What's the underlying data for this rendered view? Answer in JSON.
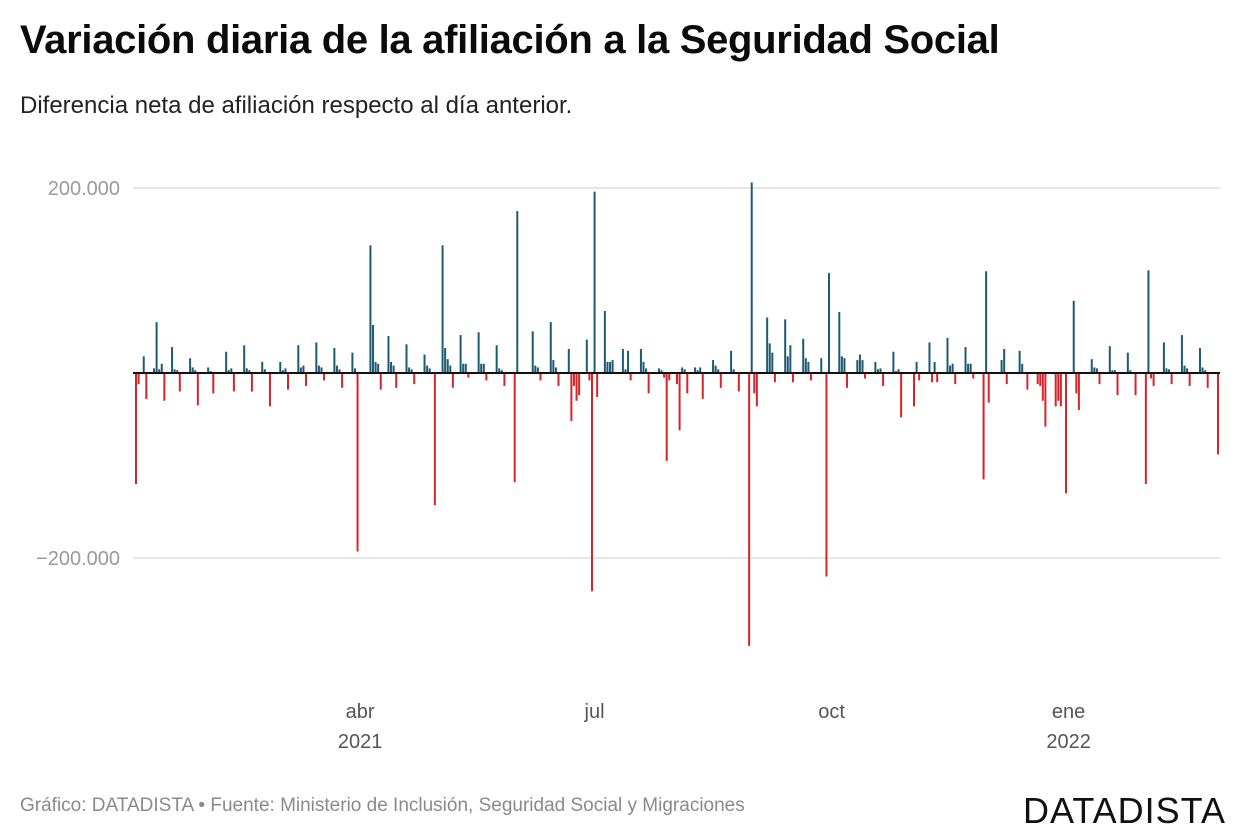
{
  "title": "Variación diaria de la afiliación a la Seguridad Social",
  "subtitle": "Diferencia neta de afiliación respecto al día anterior.",
  "footer": "Gráfico: DATADISTA • Fuente: Ministerio de Inclusión, Seguridad Social y Migraciones",
  "logo": "DATADISTA",
  "chart_data": {
    "type": "bar",
    "title": "Variación diaria de la afiliación a la Seguridad Social",
    "subtitle": "Diferencia neta de afiliación respecto al día anterior.",
    "xlabel": "",
    "ylabel": "",
    "ylim": [
      -300000,
      205000
    ],
    "grid": true,
    "y_ticks": [
      {
        "value": 200000,
        "label": "200.000"
      },
      {
        "value": -200000,
        "label": "−200.000"
      }
    ],
    "x_ticks": [
      {
        "date": "2021-04-01",
        "label": "abr",
        "year_label": "2021"
      },
      {
        "date": "2021-07-01",
        "label": "jul",
        "year_label": ""
      },
      {
        "date": "2021-10-01",
        "label": "oct",
        "year_label": ""
      },
      {
        "date": "2022-01-01",
        "label": "ene",
        "year_label": "2022"
      }
    ],
    "colors": {
      "positive": "#1f5a73",
      "negative": "#d6242b",
      "grid": "#dddddd",
      "zero": "#111111"
    },
    "series": [
      {
        "values_by_date": [
          [
            "2021-01-04",
            -120000
          ],
          [
            "2021-01-05",
            -12000
          ],
          [
            "2021-01-07",
            18000
          ],
          [
            "2021-01-08",
            -28000
          ],
          [
            "2021-01-11",
            5000
          ],
          [
            "2021-01-12",
            55000
          ],
          [
            "2021-01-13",
            4000
          ],
          [
            "2021-01-14",
            10000
          ],
          [
            "2021-01-15",
            -30000
          ],
          [
            "2021-01-18",
            28000
          ],
          [
            "2021-01-19",
            4000
          ],
          [
            "2021-01-20",
            3000
          ],
          [
            "2021-01-21",
            -20000
          ],
          [
            "2021-01-25",
            16000
          ],
          [
            "2021-01-26",
            6000
          ],
          [
            "2021-01-27",
            3000
          ],
          [
            "2021-01-28",
            -35000
          ],
          [
            "2021-02-01",
            6000
          ],
          [
            "2021-02-02",
            2000
          ],
          [
            "2021-02-03",
            -22000
          ],
          [
            "2021-02-08",
            23000
          ],
          [
            "2021-02-09",
            3000
          ],
          [
            "2021-02-10",
            5000
          ],
          [
            "2021-02-11",
            -20000
          ],
          [
            "2021-02-15",
            30000
          ],
          [
            "2021-02-16",
            5000
          ],
          [
            "2021-02-17",
            3000
          ],
          [
            "2021-02-18",
            -20000
          ],
          [
            "2021-02-22",
            12000
          ],
          [
            "2021-02-23",
            4000
          ],
          [
            "2021-02-25",
            -36000
          ],
          [
            "2021-03-01",
            12000
          ],
          [
            "2021-03-02",
            3000
          ],
          [
            "2021-03-03",
            5000
          ],
          [
            "2021-03-04",
            -18000
          ],
          [
            "2021-03-08",
            30000
          ],
          [
            "2021-03-09",
            6000
          ],
          [
            "2021-03-10",
            8000
          ],
          [
            "2021-03-11",
            -14000
          ],
          [
            "2021-03-15",
            33000
          ],
          [
            "2021-03-16",
            8000
          ],
          [
            "2021-03-17",
            6000
          ],
          [
            "2021-03-18",
            -8000
          ],
          [
            "2021-03-22",
            27000
          ],
          [
            "2021-03-23",
            8000
          ],
          [
            "2021-03-24",
            4000
          ],
          [
            "2021-03-25",
            -16000
          ],
          [
            "2021-03-29",
            22000
          ],
          [
            "2021-03-30",
            5000
          ],
          [
            "2021-03-31",
            -193000
          ],
          [
            "2021-04-05",
            138000
          ],
          [
            "2021-04-06",
            52000
          ],
          [
            "2021-04-07",
            12000
          ],
          [
            "2021-04-08",
            10000
          ],
          [
            "2021-04-09",
            -18000
          ],
          [
            "2021-04-12",
            40000
          ],
          [
            "2021-04-13",
            12000
          ],
          [
            "2021-04-14",
            8000
          ],
          [
            "2021-04-15",
            -16000
          ],
          [
            "2021-04-19",
            31000
          ],
          [
            "2021-04-20",
            6000
          ],
          [
            "2021-04-21",
            4000
          ],
          [
            "2021-04-22",
            -12000
          ],
          [
            "2021-04-26",
            20000
          ],
          [
            "2021-04-27",
            8000
          ],
          [
            "2021-04-28",
            5000
          ],
          [
            "2021-04-30",
            -143000
          ],
          [
            "2021-05-03",
            138000
          ],
          [
            "2021-05-04",
            27000
          ],
          [
            "2021-05-05",
            15000
          ],
          [
            "2021-05-06",
            8000
          ],
          [
            "2021-05-07",
            -16000
          ],
          [
            "2021-05-10",
            41000
          ],
          [
            "2021-05-11",
            10000
          ],
          [
            "2021-05-12",
            10000
          ],
          [
            "2021-05-13",
            -5000
          ],
          [
            "2021-05-17",
            44000
          ],
          [
            "2021-05-18",
            10000
          ],
          [
            "2021-05-19",
            10000
          ],
          [
            "2021-05-20",
            -8000
          ],
          [
            "2021-05-24",
            30000
          ],
          [
            "2021-05-25",
            5000
          ],
          [
            "2021-05-26",
            3000
          ],
          [
            "2021-05-27",
            -14000
          ],
          [
            "2021-05-31",
            -118000
          ],
          [
            "2021-06-01",
            175000
          ],
          [
            "2021-06-07",
            45000
          ],
          [
            "2021-06-08",
            8000
          ],
          [
            "2021-06-09",
            6000
          ],
          [
            "2021-06-10",
            -8000
          ],
          [
            "2021-06-14",
            55000
          ],
          [
            "2021-06-15",
            14000
          ],
          [
            "2021-06-16",
            6000
          ],
          [
            "2021-06-17",
            -14000
          ],
          [
            "2021-06-21",
            26000
          ],
          [
            "2021-06-22",
            -52000
          ],
          [
            "2021-06-23",
            -14000
          ],
          [
            "2021-06-24",
            -30000
          ],
          [
            "2021-06-25",
            -24000
          ],
          [
            "2021-06-28",
            36000
          ],
          [
            "2021-06-29",
            -8000
          ],
          [
            "2021-06-30",
            -236000
          ],
          [
            "2021-07-01",
            196000
          ],
          [
            "2021-07-02",
            -26000
          ],
          [
            "2021-07-05",
            67000
          ],
          [
            "2021-07-06",
            12000
          ],
          [
            "2021-07-07",
            12000
          ],
          [
            "2021-07-08",
            14000
          ],
          [
            "2021-07-12",
            26000
          ],
          [
            "2021-07-13",
            4000
          ],
          [
            "2021-07-14",
            24000
          ],
          [
            "2021-07-15",
            -8000
          ],
          [
            "2021-07-19",
            26000
          ],
          [
            "2021-07-20",
            12000
          ],
          [
            "2021-07-21",
            5000
          ],
          [
            "2021-07-22",
            -22000
          ],
          [
            "2021-07-26",
            5000
          ],
          [
            "2021-07-27",
            3000
          ],
          [
            "2021-07-28",
            -5000
          ],
          [
            "2021-07-29",
            -95000
          ],
          [
            "2021-07-30",
            -8000
          ],
          [
            "2021-08-02",
            -12000
          ],
          [
            "2021-08-03",
            -62000
          ],
          [
            "2021-08-04",
            6000
          ],
          [
            "2021-08-05",
            4000
          ],
          [
            "2021-08-06",
            -22000
          ],
          [
            "2021-08-09",
            6000
          ],
          [
            "2021-08-10",
            3000
          ],
          [
            "2021-08-11",
            6000
          ],
          [
            "2021-08-12",
            -28000
          ],
          [
            "2021-08-16",
            14000
          ],
          [
            "2021-08-17",
            8000
          ],
          [
            "2021-08-18",
            4000
          ],
          [
            "2021-08-19",
            -16000
          ],
          [
            "2021-08-23",
            24000
          ],
          [
            "2021-08-24",
            4000
          ],
          [
            "2021-08-26",
            -20000
          ],
          [
            "2021-08-30",
            -295000
          ],
          [
            "2021-08-31",
            206000
          ],
          [
            "2021-09-01",
            -22000
          ],
          [
            "2021-09-02",
            -36000
          ],
          [
            "2021-09-06",
            60000
          ],
          [
            "2021-09-07",
            32000
          ],
          [
            "2021-09-08",
            22000
          ],
          [
            "2021-09-09",
            -10000
          ],
          [
            "2021-09-13",
            58000
          ],
          [
            "2021-09-14",
            18000
          ],
          [
            "2021-09-15",
            30000
          ],
          [
            "2021-09-16",
            -10000
          ],
          [
            "2021-09-20",
            37000
          ],
          [
            "2021-09-21",
            16000
          ],
          [
            "2021-09-22",
            12000
          ],
          [
            "2021-09-23",
            -8000
          ],
          [
            "2021-09-27",
            16000
          ],
          [
            "2021-09-29",
            -220000
          ],
          [
            "2021-09-30",
            108000
          ],
          [
            "2021-10-04",
            66000
          ],
          [
            "2021-10-05",
            18000
          ],
          [
            "2021-10-06",
            16000
          ],
          [
            "2021-10-07",
            -16000
          ],
          [
            "2021-10-11",
            14000
          ],
          [
            "2021-10-12",
            20000
          ],
          [
            "2021-10-13",
            14000
          ],
          [
            "2021-10-14",
            -6000
          ],
          [
            "2021-10-18",
            12000
          ],
          [
            "2021-10-19",
            4000
          ],
          [
            "2021-10-20",
            5000
          ],
          [
            "2021-10-21",
            -14000
          ],
          [
            "2021-10-25",
            23000
          ],
          [
            "2021-10-26",
            2000
          ],
          [
            "2021-10-27",
            4000
          ],
          [
            "2021-10-28",
            -48000
          ],
          [
            "2021-11-02",
            -36000
          ],
          [
            "2021-11-03",
            12000
          ],
          [
            "2021-11-04",
            -8000
          ],
          [
            "2021-11-08",
            33000
          ],
          [
            "2021-11-09",
            -10000
          ],
          [
            "2021-11-10",
            12000
          ],
          [
            "2021-11-11",
            -10000
          ],
          [
            "2021-11-15",
            38000
          ],
          [
            "2021-11-16",
            8000
          ],
          [
            "2021-11-17",
            10000
          ],
          [
            "2021-11-18",
            -12000
          ],
          [
            "2021-11-22",
            28000
          ],
          [
            "2021-11-23",
            10000
          ],
          [
            "2021-11-24",
            10000
          ],
          [
            "2021-11-25",
            -6000
          ],
          [
            "2021-11-29",
            -115000
          ],
          [
            "2021-11-30",
            110000
          ],
          [
            "2021-12-01",
            -32000
          ],
          [
            "2021-12-06",
            14000
          ],
          [
            "2021-12-07",
            26000
          ],
          [
            "2021-12-08",
            -12000
          ],
          [
            "2021-12-13",
            24000
          ],
          [
            "2021-12-14",
            10000
          ],
          [
            "2021-12-16",
            -18000
          ],
          [
            "2021-12-20",
            -12000
          ],
          [
            "2021-12-21",
            -14000
          ],
          [
            "2021-12-22",
            -30000
          ],
          [
            "2021-12-23",
            -58000
          ],
          [
            "2021-12-27",
            -36000
          ],
          [
            "2021-12-28",
            -30000
          ],
          [
            "2021-12-29",
            -36000
          ],
          [
            "2021-12-31",
            -130000
          ],
          [
            "2022-01-03",
            78000
          ],
          [
            "2022-01-04",
            -22000
          ],
          [
            "2022-01-05",
            -40000
          ],
          [
            "2022-01-10",
            15000
          ],
          [
            "2022-01-11",
            6000
          ],
          [
            "2022-01-12",
            5000
          ],
          [
            "2022-01-13",
            -12000
          ],
          [
            "2022-01-17",
            29000
          ],
          [
            "2022-01-18",
            3000
          ],
          [
            "2022-01-19",
            3000
          ],
          [
            "2022-01-20",
            -24000
          ],
          [
            "2022-01-24",
            22000
          ],
          [
            "2022-01-25",
            3000
          ],
          [
            "2022-01-27",
            -24000
          ],
          [
            "2022-01-31",
            -120000
          ],
          [
            "2022-02-01",
            111000
          ],
          [
            "2022-02-02",
            -6000
          ],
          [
            "2022-02-03",
            -14000
          ],
          [
            "2022-02-07",
            33000
          ],
          [
            "2022-02-08",
            5000
          ],
          [
            "2022-02-09",
            4000
          ],
          [
            "2022-02-10",
            -12000
          ],
          [
            "2022-02-14",
            41000
          ],
          [
            "2022-02-15",
            8000
          ],
          [
            "2022-02-16",
            5000
          ],
          [
            "2022-02-17",
            -14000
          ],
          [
            "2022-02-21",
            27000
          ],
          [
            "2022-02-22",
            6000
          ],
          [
            "2022-02-23",
            3000
          ],
          [
            "2022-02-24",
            -16000
          ],
          [
            "2022-02-28",
            -88000
          ]
        ]
      }
    ]
  }
}
